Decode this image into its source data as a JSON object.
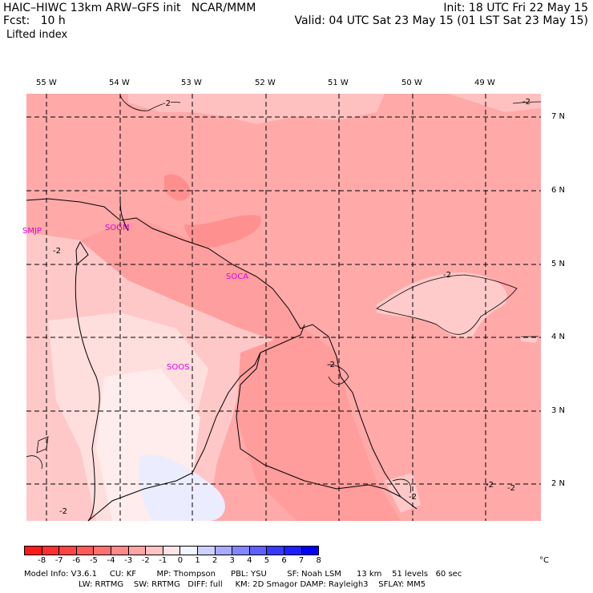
{
  "header": {
    "model": "HAIC–HIWC 13km ARW–GFS init   NCAR/MMM",
    "init": "Init: 18 UTC Fri 22 May 15",
    "fcst": "Fcst:   10 h",
    "valid": "Valid: 04 UTC Sat 23 May 15 (01 LST Sat 23 May 15)",
    "field": "Lifted index"
  },
  "map": {
    "lon_labels": [
      "55 W",
      "54 W",
      "53 W",
      "52 W",
      "51 W",
      "50 W",
      "49 W"
    ],
    "lat_labels": [
      "7 N",
      "6 N",
      "5 N",
      "4 N",
      "3 N",
      "2 N"
    ],
    "stations": [
      "SMJP",
      "SOGM",
      "SOCA",
      "SOOS"
    ],
    "contour_labels": [
      "-2",
      "-2",
      "-2",
      "-2",
      "-2",
      "-2",
      "-2",
      "-2",
      "-2"
    ]
  },
  "colorbar": {
    "labels": [
      "-8",
      "-7",
      "-6",
      "-5",
      "-4",
      "-3",
      "-2",
      "-1",
      "0",
      "1",
      "2",
      "3",
      "4",
      "5",
      "6",
      "7",
      "8"
    ],
    "unit": "°C",
    "colors": [
      "#ff1a1a",
      "#ff3030",
      "#ff4444",
      "#ff5a5a",
      "#ff7070",
      "#ff8a8a",
      "#ffa5a5",
      "#ffc4c4",
      "#ffe6e6",
      "#f4f4ff",
      "#d0d0ff",
      "#aaaaff",
      "#8585ff",
      "#6060ff",
      "#3a3aff",
      "#1f1fff",
      "#0000ff"
    ]
  },
  "footer": {
    "line1": "Model Info: V3.6.1     CU: KF        MP: Thompson      PBL: YSU        SF: Noah LSM      13 km    51 levels   60 sec",
    "line2": "LW: RRTMG    SW: RRTMG   DIFF: full     KM: 2D Smagor DAMP: Rayleigh3    SFLAY: MM5"
  }
}
